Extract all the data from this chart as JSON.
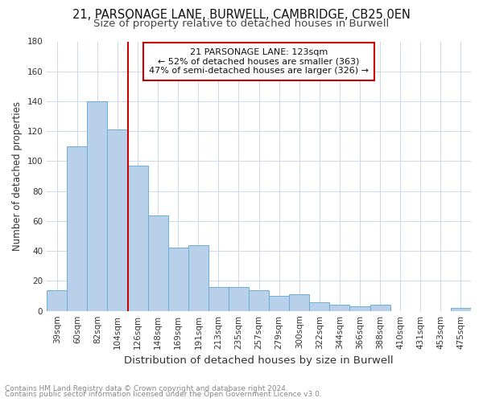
{
  "title": "21, PARSONAGE LANE, BURWELL, CAMBRIDGE, CB25 0EN",
  "subtitle": "Size of property relative to detached houses in Burwell",
  "xlabel": "Distribution of detached houses by size in Burwell",
  "ylabel": "Number of detached properties",
  "categories": [
    "39sqm",
    "60sqm",
    "82sqm",
    "104sqm",
    "126sqm",
    "148sqm",
    "169sqm",
    "191sqm",
    "213sqm",
    "235sqm",
    "257sqm",
    "279sqm",
    "300sqm",
    "322sqm",
    "344sqm",
    "366sqm",
    "388sqm",
    "410sqm",
    "431sqm",
    "453sqm",
    "475sqm"
  ],
  "values": [
    14,
    110,
    140,
    121,
    97,
    64,
    42,
    44,
    16,
    16,
    14,
    10,
    11,
    6,
    4,
    3,
    4,
    0,
    0,
    0,
    2
  ],
  "bar_color": "#b8d0ea",
  "bar_edge_color": "#6aaed6",
  "grid_color": "#cdd8ea",
  "vline_x_index": 4,
  "vline_color": "#cc0000",
  "annotation_line1": "21 PARSONAGE LANE: 123sqm",
  "annotation_line2": "← 52% of detached houses are smaller (363)",
  "annotation_line3": "47% of semi-detached houses are larger (326) →",
  "annotation_box_color": "#cc0000",
  "annotation_text_color": "#111111",
  "footnote1": "Contains HM Land Registry data © Crown copyright and database right 2024.",
  "footnote2": "Contains public sector information licensed under the Open Government Licence v3.0.",
  "ylim": [
    0,
    180
  ],
  "yticks": [
    0,
    20,
    40,
    60,
    80,
    100,
    120,
    140,
    160,
    180
  ],
  "background_color": "#ffffff",
  "title_fontsize": 10.5,
  "subtitle_fontsize": 9.5,
  "tick_fontsize": 7.5,
  "ylabel_fontsize": 8.5,
  "xlabel_fontsize": 9.5
}
